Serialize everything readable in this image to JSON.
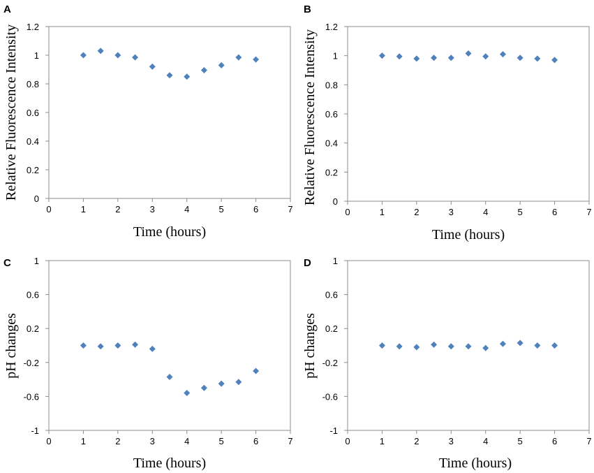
{
  "chart_data": [
    {
      "panel": "A",
      "type": "scatter",
      "xlabel": "Time (hours)",
      "ylabel": "Relative Fluorescence Intensity",
      "xlim": [
        0,
        7
      ],
      "ylim": [
        0,
        1.2
      ],
      "xticks": [
        "0",
        "1",
        "2",
        "3",
        "4",
        "5",
        "6",
        "7"
      ],
      "yticks": [
        "0",
        "0.2",
        "0.4",
        "0.6",
        "0.8",
        "1",
        "1.2"
      ],
      "marker_color": "#4f81bd",
      "x": [
        1,
        1.5,
        2,
        2.5,
        3,
        3.5,
        4,
        4.5,
        5,
        5.5,
        6
      ],
      "y": [
        1.0,
        1.03,
        1.0,
        0.985,
        0.92,
        0.86,
        0.85,
        0.895,
        0.93,
        0.985,
        0.97
      ]
    },
    {
      "panel": "B",
      "type": "scatter",
      "xlabel": "Time (hours)",
      "ylabel": "Relative Fluorescence Intensity",
      "xlim": [
        0,
        7
      ],
      "ylim": [
        0,
        1.2
      ],
      "xticks": [
        "0",
        "1",
        "2",
        "3",
        "4",
        "5",
        "6",
        "7"
      ],
      "yticks": [
        "0",
        "0.2",
        "0.4",
        "0.6",
        "0.8",
        "1",
        "1.2"
      ],
      "marker_color": "#4f81bd",
      "x": [
        1,
        1.5,
        2,
        2.5,
        3,
        3.5,
        4,
        4.5,
        5,
        5.5,
        6
      ],
      "y": [
        1.0,
        0.995,
        0.98,
        0.985,
        0.985,
        1.015,
        0.995,
        1.01,
        0.985,
        0.98,
        0.97
      ]
    },
    {
      "panel": "C",
      "type": "scatter",
      "xlabel": "Time (hours)",
      "ylabel": "pH changes",
      "xlim": [
        0,
        7
      ],
      "ylim": [
        -1,
        1
      ],
      "xticks": [
        "0",
        "1",
        "2",
        "3",
        "4",
        "5",
        "6",
        "7"
      ],
      "yticks": [
        "-1",
        "-0.6",
        "-0.2",
        "0.2",
        "0.6",
        "1"
      ],
      "marker_color": "#4f81bd",
      "x": [
        1,
        1.5,
        2,
        2.5,
        3,
        3.5,
        4,
        4.5,
        5,
        5.5,
        6
      ],
      "y": [
        0.0,
        -0.01,
        0.0,
        0.01,
        -0.04,
        -0.37,
        -0.56,
        -0.5,
        -0.45,
        -0.43,
        -0.3
      ]
    },
    {
      "panel": "D",
      "type": "scatter",
      "xlabel": "Time (hours)",
      "ylabel": "pH changes",
      "xlim": [
        0,
        7
      ],
      "ylim": [
        -1,
        1
      ],
      "xticks": [
        "0",
        "1",
        "2",
        "3",
        "4",
        "5",
        "6",
        "7"
      ],
      "yticks": [
        "-1",
        "-0.6",
        "-0.2",
        "0.2",
        "0.6",
        "1"
      ],
      "marker_color": "#4f81bd",
      "x": [
        1,
        1.5,
        2,
        2.5,
        3,
        3.5,
        4,
        4.5,
        5,
        5.5,
        6
      ],
      "y": [
        0.0,
        -0.01,
        -0.02,
        0.01,
        -0.01,
        -0.01,
        -0.03,
        0.02,
        0.03,
        0.0,
        0.0
      ]
    }
  ]
}
